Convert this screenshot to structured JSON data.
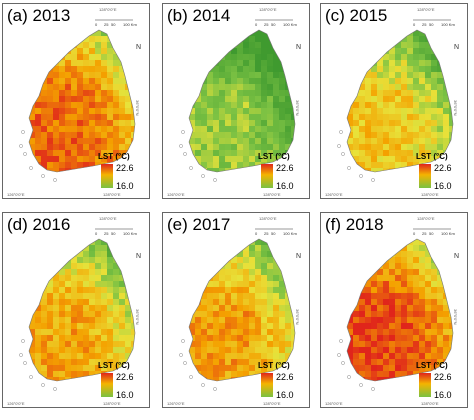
{
  "panels": [
    {
      "label": "(a) 2013",
      "warmth": 0.85
    },
    {
      "label": "(b) 2014",
      "warmth": 0.35
    },
    {
      "label": "(c) 2015",
      "warmth": 0.6
    },
    {
      "label": "(d) 2016",
      "warmth": 0.7
    },
    {
      "label": "(e) 2017",
      "warmth": 0.72
    },
    {
      "label": "(f) 2018",
      "warmth": 0.92
    }
  ],
  "legend": {
    "title": "LST (°C)",
    "max": "22.6",
    "min": "16.0"
  },
  "ticks": {
    "lon1": "126°0'0\"E",
    "lon2": "128°0'0\"E",
    "lat": "36°0'0\"N"
  },
  "scale": {
    "zero": "0",
    "mid1": "25",
    "mid2": "50",
    "end": "100 Km"
  },
  "north": "N",
  "colors": {
    "hot": "#e0251b",
    "warm": "#f4a100",
    "mild": "#e8e23a",
    "cool": "#7ac143",
    "cold": "#3f9a2f"
  }
}
